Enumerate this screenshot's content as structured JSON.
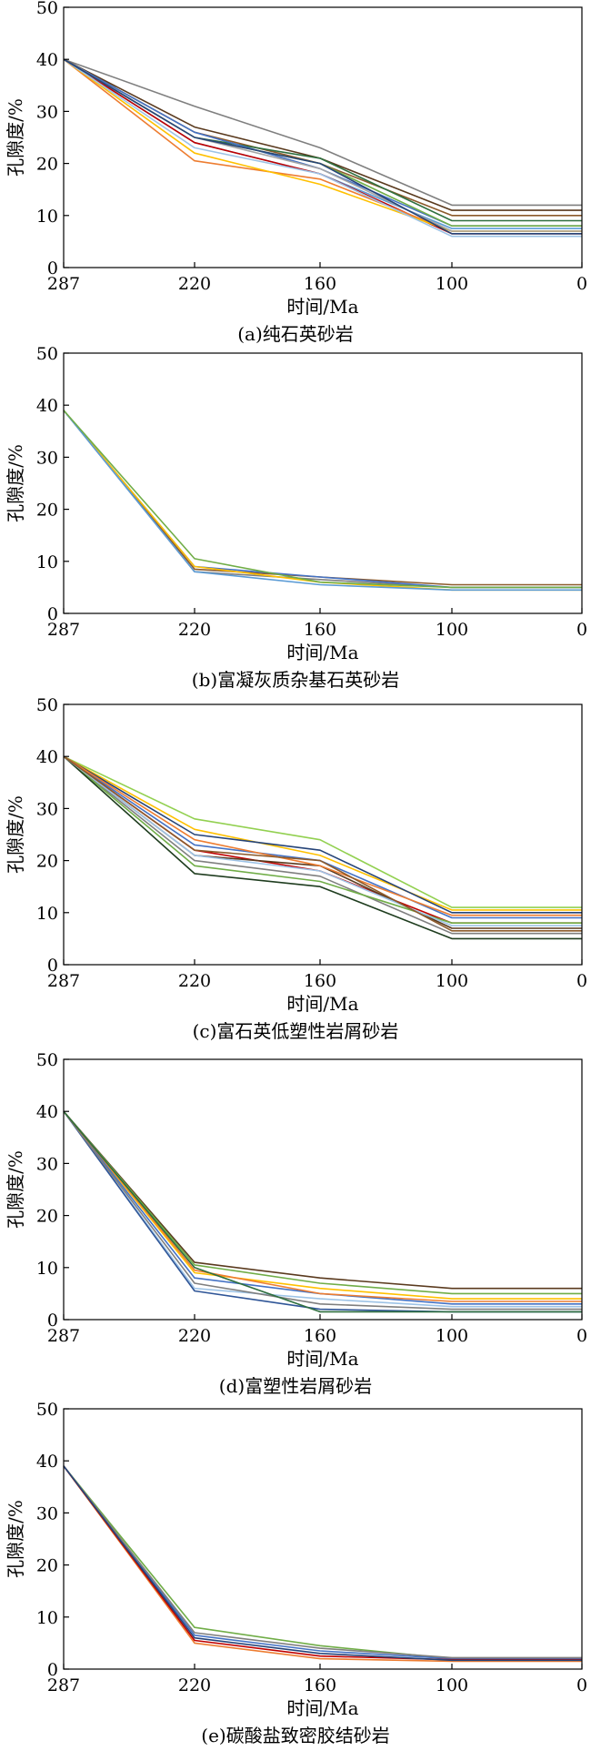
{
  "chart_data": [
    {
      "type": "line",
      "panel_label": "(a)纯石英砂岩",
      "x": [
        287,
        220,
        160,
        100,
        0
      ],
      "xticks": [
        "287",
        "220",
        "160",
        "100",
        "0"
      ],
      "xlabel": "时间/Ma",
      "ylabel": "孔隙度/%",
      "ylim": [
        0,
        50
      ],
      "yticks": [
        0,
        10,
        20,
        30,
        40,
        50
      ],
      "grid": false,
      "series": [
        {
          "color": "#7f7f7f",
          "values": [
            40,
            31,
            23,
            12,
            12
          ]
        },
        {
          "color": "#5a3a1e",
          "values": [
            40,
            27,
            21,
            11,
            11
          ]
        },
        {
          "color": "#8c5a2b",
          "values": [
            40,
            26,
            20,
            10,
            10
          ]
        },
        {
          "color": "#2f6f3f",
          "values": [
            40,
            25,
            21,
            9,
            9
          ]
        },
        {
          "color": "#4472c4",
          "values": [
            40,
            26,
            19,
            8,
            8
          ]
        },
        {
          "color": "#5b9bd5",
          "values": [
            40,
            24,
            18,
            7.5,
            7.5
          ]
        },
        {
          "color": "#70ad47",
          "values": [
            40,
            25,
            20,
            8,
            8
          ]
        },
        {
          "color": "#c00000",
          "values": [
            40,
            24,
            18,
            6.5,
            6.5
          ]
        },
        {
          "color": "#ed7d31",
          "values": [
            40,
            20.5,
            17,
            7,
            7
          ]
        },
        {
          "color": "#ffc000",
          "values": [
            40,
            22,
            16,
            7,
            7
          ]
        },
        {
          "color": "#9dc3e6",
          "values": [
            40,
            23,
            18,
            6,
            6
          ]
        },
        {
          "color": "#a5a5a5",
          "values": [
            40,
            25,
            19,
            7,
            7
          ]
        },
        {
          "color": "#264478",
          "values": [
            40,
            25,
            20,
            6.5,
            6.5
          ]
        }
      ]
    },
    {
      "type": "line",
      "panel_label": "(b)富凝灰质杂基石英砂岩",
      "x": [
        287,
        220,
        160,
        100,
        0
      ],
      "xticks": [
        "287",
        "220",
        "160",
        "100",
        "0"
      ],
      "xlabel": "时间/Ma",
      "ylabel": "孔隙度/%",
      "ylim": [
        0,
        50
      ],
      "yticks": [
        0,
        10,
        20,
        30,
        40,
        50
      ],
      "grid": false,
      "series": [
        {
          "color": "#8c5a2b",
          "values": [
            39,
            8.5,
            7,
            5.5,
            5.5
          ]
        },
        {
          "color": "#7f7f7f",
          "values": [
            39,
            8,
            6.5,
            5,
            5
          ]
        },
        {
          "color": "#4472c4",
          "values": [
            39,
            9,
            7,
            5,
            5
          ]
        },
        {
          "color": "#ffc000",
          "values": [
            39,
            9,
            6,
            4.5,
            4.5
          ]
        },
        {
          "color": "#5b9bd5",
          "values": [
            39,
            8,
            5.5,
            4.5,
            4.5
          ]
        },
        {
          "color": "#70ad47",
          "values": [
            39,
            10.5,
            6,
            5,
            5
          ]
        }
      ]
    },
    {
      "type": "line",
      "panel_label": "(c)富石英低塑性岩屑砂岩",
      "x": [
        287,
        220,
        160,
        100,
        0
      ],
      "xticks": [
        "287",
        "220",
        "160",
        "100",
        "0"
      ],
      "xlabel": "时间/Ma",
      "ylabel": "孔隙度/%",
      "ylim": [
        0,
        50
      ],
      "yticks": [
        0,
        10,
        20,
        30,
        40,
        50
      ],
      "grid": false,
      "series": [
        {
          "color": "#92d050",
          "values": [
            40,
            28,
            24,
            11,
            11
          ]
        },
        {
          "color": "#ffc000",
          "values": [
            40,
            26,
            21,
            10.5,
            10.5
          ]
        },
        {
          "color": "#264478",
          "values": [
            40,
            25,
            22,
            10,
            10
          ]
        },
        {
          "color": "#4472c4",
          "values": [
            40,
            23,
            20,
            9,
            9
          ]
        },
        {
          "color": "#c00000",
          "values": [
            40,
            22,
            18,
            8,
            8
          ]
        },
        {
          "color": "#5a3a1e",
          "values": [
            40,
            21,
            19,
            7,
            7
          ]
        },
        {
          "color": "#7f7f7f",
          "values": [
            40,
            20,
            17,
            6,
            6
          ]
        },
        {
          "color": "#ed7d31",
          "values": [
            40,
            24,
            19,
            9.5,
            9.5
          ]
        },
        {
          "color": "#70ad47",
          "values": [
            40,
            19,
            16,
            8,
            8
          ]
        },
        {
          "color": "#1f3d1f",
          "values": [
            40,
            17.5,
            15,
            5,
            5
          ]
        },
        {
          "color": "#9dc3e6",
          "values": [
            40,
            21,
            18,
            7.5,
            7.5
          ]
        },
        {
          "color": "#8c5a2b",
          "values": [
            40,
            22,
            20,
            6.5,
            6.5
          ]
        }
      ]
    },
    {
      "type": "line",
      "panel_label": "(d)富塑性岩屑砂岩",
      "x": [
        287,
        220,
        160,
        100,
        0
      ],
      "xticks": [
        "287",
        "220",
        "160",
        "100",
        "0"
      ],
      "xlabel": "时间/Ma",
      "ylabel": "孔隙度/%",
      "ylim": [
        0,
        50
      ],
      "yticks": [
        0,
        10,
        20,
        30,
        40,
        50
      ],
      "grid": false,
      "series": [
        {
          "color": "#5a3a1e",
          "values": [
            40,
            11,
            8,
            6,
            6
          ]
        },
        {
          "color": "#70ad47",
          "values": [
            40,
            10.5,
            7,
            5,
            5
          ]
        },
        {
          "color": "#ffc000",
          "values": [
            40,
            9,
            6,
            4,
            4
          ]
        },
        {
          "color": "#4472c4",
          "values": [
            40,
            8,
            5,
            3,
            3
          ]
        },
        {
          "color": "#9dc3e6",
          "values": [
            40,
            6,
            4,
            2.5,
            2.5
          ]
        },
        {
          "color": "#2f5597",
          "values": [
            40,
            5.5,
            2,
            1.5,
            1.5
          ]
        },
        {
          "color": "#7f7f7f",
          "values": [
            40,
            7,
            3,
            2,
            2
          ]
        },
        {
          "color": "#ed7d31",
          "values": [
            40,
            9.5,
            5,
            3.5,
            3.5
          ]
        },
        {
          "color": "#2f6f3f",
          "values": [
            40,
            10,
            1.5,
            1.5,
            1.5
          ]
        }
      ]
    },
    {
      "type": "line",
      "panel_label": "(e)碳酸盐致密胶结砂岩",
      "x": [
        287,
        220,
        160,
        100,
        0
      ],
      "xticks": [
        "287",
        "220",
        "160",
        "100",
        "0"
      ],
      "xlabel": "时间/Ma",
      "ylabel": "孔隙度/%",
      "ylim": [
        0,
        50
      ],
      "yticks": [
        0,
        10,
        20,
        30,
        40,
        50
      ],
      "grid": false,
      "series": [
        {
          "color": "#70ad47",
          "values": [
            39,
            8,
            4.5,
            2,
            2
          ]
        },
        {
          "color": "#4472c4",
          "values": [
            39,
            6.5,
            3.5,
            2,
            2
          ]
        },
        {
          "color": "#ed7d31",
          "values": [
            39,
            5,
            2,
            1.5,
            1.5
          ]
        },
        {
          "color": "#c00000",
          "values": [
            39,
            5.5,
            2.5,
            1.8,
            1.8
          ]
        },
        {
          "color": "#7f7f7f",
          "values": [
            39,
            7,
            4,
            2.2,
            2.2
          ]
        },
        {
          "color": "#264478",
          "values": [
            39,
            6,
            3,
            1.7,
            1.7
          ]
        }
      ]
    }
  ]
}
